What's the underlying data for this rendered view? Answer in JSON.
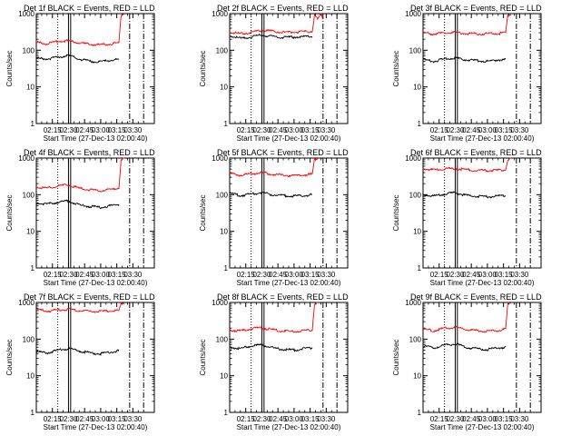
{
  "chart_data": [
    {
      "type": "line",
      "title": "Det 1f BLACK = Events, RED = LLD",
      "xlabel": "Start Time (27-Dec-13 02:00:40)",
      "ylabel": "Counts/sec",
      "yscale": "log",
      "ylim": [
        1,
        1000
      ],
      "xlim": [
        "02:00",
        "03:50"
      ],
      "x_ticks": [
        "02:15",
        "02:30",
        "02:45",
        "03:00",
        "03:15",
        "03:30"
      ],
      "y_ticks": [
        "1",
        "10",
        "100",
        "1000"
      ],
      "markers": [
        {
          "type": "dotted",
          "time": "02:20"
        },
        {
          "type": "box",
          "start": "02:30",
          "end": "02:32"
        },
        {
          "type": "dashdot",
          "time": "03:27"
        },
        {
          "type": "dashdot",
          "time": "03:40"
        }
      ],
      "series": [
        {
          "name": "Events",
          "color": "#000000",
          "time": [
            "02:00",
            "02:10",
            "02:20",
            "02:30",
            "02:40",
            "02:50",
            "03:00",
            "03:10",
            "03:17"
          ],
          "values": [
            60,
            58,
            65,
            72,
            58,
            50,
            48,
            55,
            55
          ]
        },
        {
          "name": "LLD",
          "color": "#ff0000",
          "time": [
            "02:00",
            "02:10",
            "02:20",
            "02:30",
            "02:40",
            "02:50",
            "03:00",
            "03:10",
            "03:17",
            "03:19",
            "03:22"
          ],
          "values": [
            165,
            150,
            175,
            180,
            160,
            145,
            140,
            150,
            160,
            900,
            1000
          ]
        }
      ]
    },
    {
      "type": "line",
      "title": "Det 2f BLACK = Events, RED = LLD",
      "xlabel": "Start Time (27-Dec-13 02:00:40)",
      "ylabel": "Counts/sec",
      "yscale": "log",
      "ylim": [
        1,
        1000
      ],
      "xlim": [
        "02:00",
        "03:50"
      ],
      "x_ticks": [
        "02:15",
        "02:30",
        "02:45",
        "03:00",
        "03:15",
        "03:30"
      ],
      "y_ticks": [
        "1",
        "10",
        "100",
        "1000"
      ],
      "markers": [
        {
          "type": "dotted",
          "time": "02:20"
        },
        {
          "type": "box",
          "start": "02:30",
          "end": "02:32"
        },
        {
          "type": "dashdot",
          "time": "03:27"
        },
        {
          "type": "dashdot",
          "time": "03:40"
        }
      ],
      "series": [
        {
          "name": "Events",
          "color": "#000000",
          "time": [
            "02:00",
            "02:10",
            "02:20",
            "02:30",
            "02:40",
            "02:50",
            "03:00",
            "03:10",
            "03:17"
          ],
          "values": [
            250,
            210,
            230,
            260,
            240,
            225,
            230,
            235,
            240
          ]
        },
        {
          "name": "LLD",
          "color": "#ff0000",
          "time": [
            "02:00",
            "02:10",
            "02:20",
            "02:30",
            "02:40",
            "02:50",
            "03:00",
            "03:10",
            "03:17",
            "03:19",
            "03:22",
            "03:25",
            "03:27"
          ],
          "values": [
            320,
            280,
            310,
            350,
            330,
            310,
            315,
            320,
            330,
            900,
            700,
            1000,
            700
          ]
        }
      ]
    },
    {
      "type": "line",
      "title": "Det 3f BLACK = Events, RED = LLD",
      "xlabel": "Start Time (27-Dec-13 02:00:40)",
      "ylabel": "Counts/sec",
      "yscale": "log",
      "ylim": [
        1,
        1000
      ],
      "xlim": [
        "02:00",
        "03:50"
      ],
      "x_ticks": [
        "02:15",
        "02:30",
        "02:45",
        "03:00",
        "03:15",
        "03:30"
      ],
      "y_ticks": [
        "1",
        "10",
        "100",
        "1000"
      ],
      "markers": [
        {
          "type": "dotted",
          "time": "02:20"
        },
        {
          "type": "box",
          "start": "02:30",
          "end": "02:32"
        },
        {
          "type": "dashdot",
          "time": "03:27"
        },
        {
          "type": "dashdot",
          "time": "03:40"
        }
      ],
      "series": [
        {
          "name": "Events",
          "color": "#000000",
          "time": [
            "02:00",
            "02:10",
            "02:20",
            "02:30",
            "02:40",
            "02:50",
            "03:00",
            "03:10",
            "03:17"
          ],
          "values": [
            55,
            50,
            58,
            62,
            55,
            52,
            50,
            55,
            55
          ]
        },
        {
          "name": "LLD",
          "color": "#ff0000",
          "time": [
            "02:00",
            "02:10",
            "02:20",
            "02:30",
            "02:40",
            "02:50",
            "03:00",
            "03:10",
            "03:17",
            "03:19",
            "03:22"
          ],
          "values": [
            300,
            280,
            300,
            310,
            290,
            280,
            285,
            290,
            300,
            900,
            1000
          ]
        }
      ]
    },
    {
      "type": "line",
      "title": "Det 4f BLACK = Events, RED = LLD",
      "xlabel": "Start Time (27-Dec-13 02:00:40)",
      "ylabel": "Counts/sec",
      "yscale": "log",
      "ylim": [
        1,
        1000
      ],
      "xlim": [
        "02:00",
        "03:50"
      ],
      "x_ticks": [
        "02:15",
        "02:30",
        "02:45",
        "03:00",
        "03:15",
        "03:30"
      ],
      "y_ticks": [
        "1",
        "10",
        "100",
        "1000"
      ],
      "markers": [
        {
          "type": "dotted",
          "time": "02:20"
        },
        {
          "type": "box",
          "start": "02:30",
          "end": "02:32"
        },
        {
          "type": "dashdot",
          "time": "03:27"
        },
        {
          "type": "dashdot",
          "time": "03:40"
        }
      ],
      "series": [
        {
          "name": "Events",
          "color": "#000000",
          "time": [
            "02:00",
            "02:10",
            "02:20",
            "02:30",
            "02:40",
            "02:50",
            "03:00",
            "03:10",
            "03:17"
          ],
          "values": [
            60,
            55,
            62,
            68,
            52,
            48,
            45,
            50,
            55
          ]
        },
        {
          "name": "LLD",
          "color": "#ff0000",
          "time": [
            "02:00",
            "02:10",
            "02:20",
            "02:30",
            "02:40",
            "02:50",
            "03:00",
            "03:10",
            "03:17",
            "03:19",
            "03:22"
          ],
          "values": [
            165,
            150,
            175,
            185,
            150,
            135,
            130,
            140,
            155,
            900,
            1000
          ]
        }
      ]
    },
    {
      "type": "line",
      "title": "Det 5f BLACK = Events, RED = LLD",
      "xlabel": "Start Time (27-Dec-13 02:00:40)",
      "ylabel": "Counts/sec",
      "yscale": "log",
      "ylim": [
        1,
        1000
      ],
      "xlim": [
        "02:00",
        "03:50"
      ],
      "x_ticks": [
        "02:15",
        "02:30",
        "02:45",
        "03:00",
        "03:15",
        "03:30"
      ],
      "y_ticks": [
        "1",
        "10",
        "100",
        "1000"
      ],
      "markers": [
        {
          "type": "dotted",
          "time": "02:20"
        },
        {
          "type": "box",
          "start": "02:30",
          "end": "02:32"
        },
        {
          "type": "dashdot",
          "time": "03:27"
        },
        {
          "type": "dashdot",
          "time": "03:40"
        }
      ],
      "series": [
        {
          "name": "Events",
          "color": "#000000",
          "time": [
            "02:00",
            "02:10",
            "02:20",
            "02:30",
            "02:40",
            "02:50",
            "03:00",
            "03:10",
            "03:17"
          ],
          "values": [
            110,
            95,
            105,
            115,
            100,
            95,
            92,
            95,
            100
          ]
        },
        {
          "name": "LLD",
          "color": "#ff0000",
          "time": [
            "02:00",
            "02:10",
            "02:20",
            "02:30",
            "02:40",
            "02:50",
            "03:00",
            "03:10",
            "03:17",
            "03:19",
            "03:22"
          ],
          "values": [
            380,
            340,
            370,
            400,
            360,
            340,
            330,
            345,
            360,
            900,
            1000
          ]
        }
      ]
    },
    {
      "type": "line",
      "title": "Det 6f BLACK = Events, RED = LLD",
      "xlabel": "Start Time (27-Dec-13 02:00:40)",
      "ylabel": "Counts/sec",
      "yscale": "log",
      "ylim": [
        1,
        1000
      ],
      "xlim": [
        "02:00",
        "03:50"
      ],
      "x_ticks": [
        "02:15",
        "02:30",
        "02:45",
        "03:00",
        "03:15",
        "03:30"
      ],
      "y_ticks": [
        "1",
        "10",
        "100",
        "1000"
      ],
      "markers": [
        {
          "type": "dotted",
          "time": "02:20"
        },
        {
          "type": "box",
          "start": "02:30",
          "end": "02:32"
        },
        {
          "type": "dashdot",
          "time": "03:27"
        },
        {
          "type": "dashdot",
          "time": "03:40"
        }
      ],
      "series": [
        {
          "name": "Events",
          "color": "#000000",
          "time": [
            "02:00",
            "02:10",
            "02:20",
            "02:30",
            "02:40",
            "02:50",
            "03:00",
            "03:10",
            "03:17"
          ],
          "values": [
            100,
            92,
            105,
            115,
            95,
            90,
            88,
            92,
            95
          ]
        },
        {
          "name": "LLD",
          "color": "#ff0000",
          "time": [
            "02:00",
            "02:10",
            "02:20",
            "02:30",
            "02:40",
            "02:50",
            "03:00",
            "03:10",
            "03:17",
            "03:19",
            "03:22"
          ],
          "values": [
            520,
            470,
            500,
            520,
            480,
            460,
            455,
            465,
            480,
            900,
            1000
          ]
        }
      ]
    },
    {
      "type": "line",
      "title": "Det 7f BLACK = Events, RED = LLD",
      "xlabel": "Start Time (27-Dec-13 02:00:40)",
      "ylabel": "Counts/sec",
      "yscale": "log",
      "ylim": [
        1,
        1000
      ],
      "xlim": [
        "02:00",
        "03:50"
      ],
      "x_ticks": [
        "02:15",
        "02:30",
        "02:45",
        "03:00",
        "03:15",
        "03:30"
      ],
      "y_ticks": [
        "1",
        "10",
        "100",
        "1000"
      ],
      "markers": [
        {
          "type": "dotted",
          "time": "02:20"
        },
        {
          "type": "box",
          "start": "02:30",
          "end": "02:32"
        },
        {
          "type": "dashdot",
          "time": "03:27"
        },
        {
          "type": "dashdot",
          "time": "03:40"
        }
      ],
      "series": [
        {
          "name": "Events",
          "color": "#000000",
          "time": [
            "02:00",
            "02:10",
            "02:20",
            "02:30",
            "02:40",
            "02:50",
            "03:00",
            "03:10",
            "03:17"
          ],
          "values": [
            45,
            42,
            50,
            55,
            48,
            42,
            40,
            45,
            48
          ]
        },
        {
          "name": "LLD",
          "color": "#ff0000",
          "time": [
            "02:00",
            "02:10",
            "02:20",
            "02:30",
            "02:40",
            "02:50",
            "03:00",
            "03:10",
            "03:17",
            "03:19",
            "03:22"
          ],
          "values": [
            640,
            580,
            620,
            650,
            600,
            580,
            570,
            585,
            600,
            900,
            1000
          ]
        }
      ]
    },
    {
      "type": "line",
      "title": "Det 8f BLACK = Events, RED = LLD",
      "xlabel": "Start Time (27-Dec-13 02:00:40)",
      "ylabel": "Counts/sec",
      "yscale": "log",
      "ylim": [
        1,
        1000
      ],
      "xlim": [
        "02:00",
        "03:50"
      ],
      "x_ticks": [
        "02:15",
        "02:30",
        "02:45",
        "03:00",
        "03:15",
        "03:30"
      ],
      "y_ticks": [
        "1",
        "10",
        "100",
        "1000"
      ],
      "markers": [
        {
          "type": "dotted",
          "time": "02:20"
        },
        {
          "type": "box",
          "start": "02:30",
          "end": "02:32"
        },
        {
          "type": "dashdot",
          "time": "03:27"
        },
        {
          "type": "dashdot",
          "time": "03:40"
        }
      ],
      "series": [
        {
          "name": "Events",
          "color": "#000000",
          "time": [
            "02:00",
            "02:10",
            "02:20",
            "02:30",
            "02:40",
            "02:50",
            "03:00",
            "03:10",
            "03:17"
          ],
          "values": [
            60,
            55,
            65,
            70,
            58,
            52,
            50,
            55,
            58
          ]
        },
        {
          "name": "LLD",
          "color": "#ff0000",
          "time": [
            "02:00",
            "02:10",
            "02:20",
            "02:30",
            "02:40",
            "02:50",
            "03:00",
            "03:10",
            "03:17",
            "03:19",
            "03:22"
          ],
          "values": [
            180,
            165,
            195,
            205,
            180,
            165,
            160,
            170,
            180,
            900,
            1000
          ]
        }
      ]
    },
    {
      "type": "line",
      "title": "Det 9f BLACK = Events, RED = LLD",
      "xlabel": "Start Time (27-Dec-13 02:00:40)",
      "ylabel": "Counts/sec",
      "yscale": "log",
      "ylim": [
        1,
        1000
      ],
      "xlim": [
        "02:00",
        "03:50"
      ],
      "x_ticks": [
        "02:15",
        "02:30",
        "02:45",
        "03:00",
        "03:15",
        "03:30"
      ],
      "y_ticks": [
        "1",
        "10",
        "100",
        "1000"
      ],
      "markers": [
        {
          "type": "dotted",
          "time": "02:20"
        },
        {
          "type": "box",
          "start": "02:30",
          "end": "02:32"
        },
        {
          "type": "dashdot",
          "time": "03:27"
        },
        {
          "type": "dashdot",
          "time": "03:40"
        }
      ],
      "series": [
        {
          "name": "Events",
          "color": "#000000",
          "time": [
            "02:00",
            "02:10",
            "02:20",
            "02:30",
            "02:40",
            "02:50",
            "03:00",
            "03:10",
            "03:17"
          ],
          "values": [
            65,
            58,
            68,
            75,
            60,
            55,
            52,
            58,
            60
          ]
        },
        {
          "name": "LLD",
          "color": "#ff0000",
          "time": [
            "02:00",
            "02:10",
            "02:20",
            "02:30",
            "02:40",
            "02:50",
            "03:00",
            "03:10",
            "03:17",
            "03:19",
            "03:22"
          ],
          "values": [
            185,
            170,
            200,
            210,
            185,
            170,
            165,
            175,
            185,
            900,
            1000
          ]
        }
      ]
    }
  ]
}
